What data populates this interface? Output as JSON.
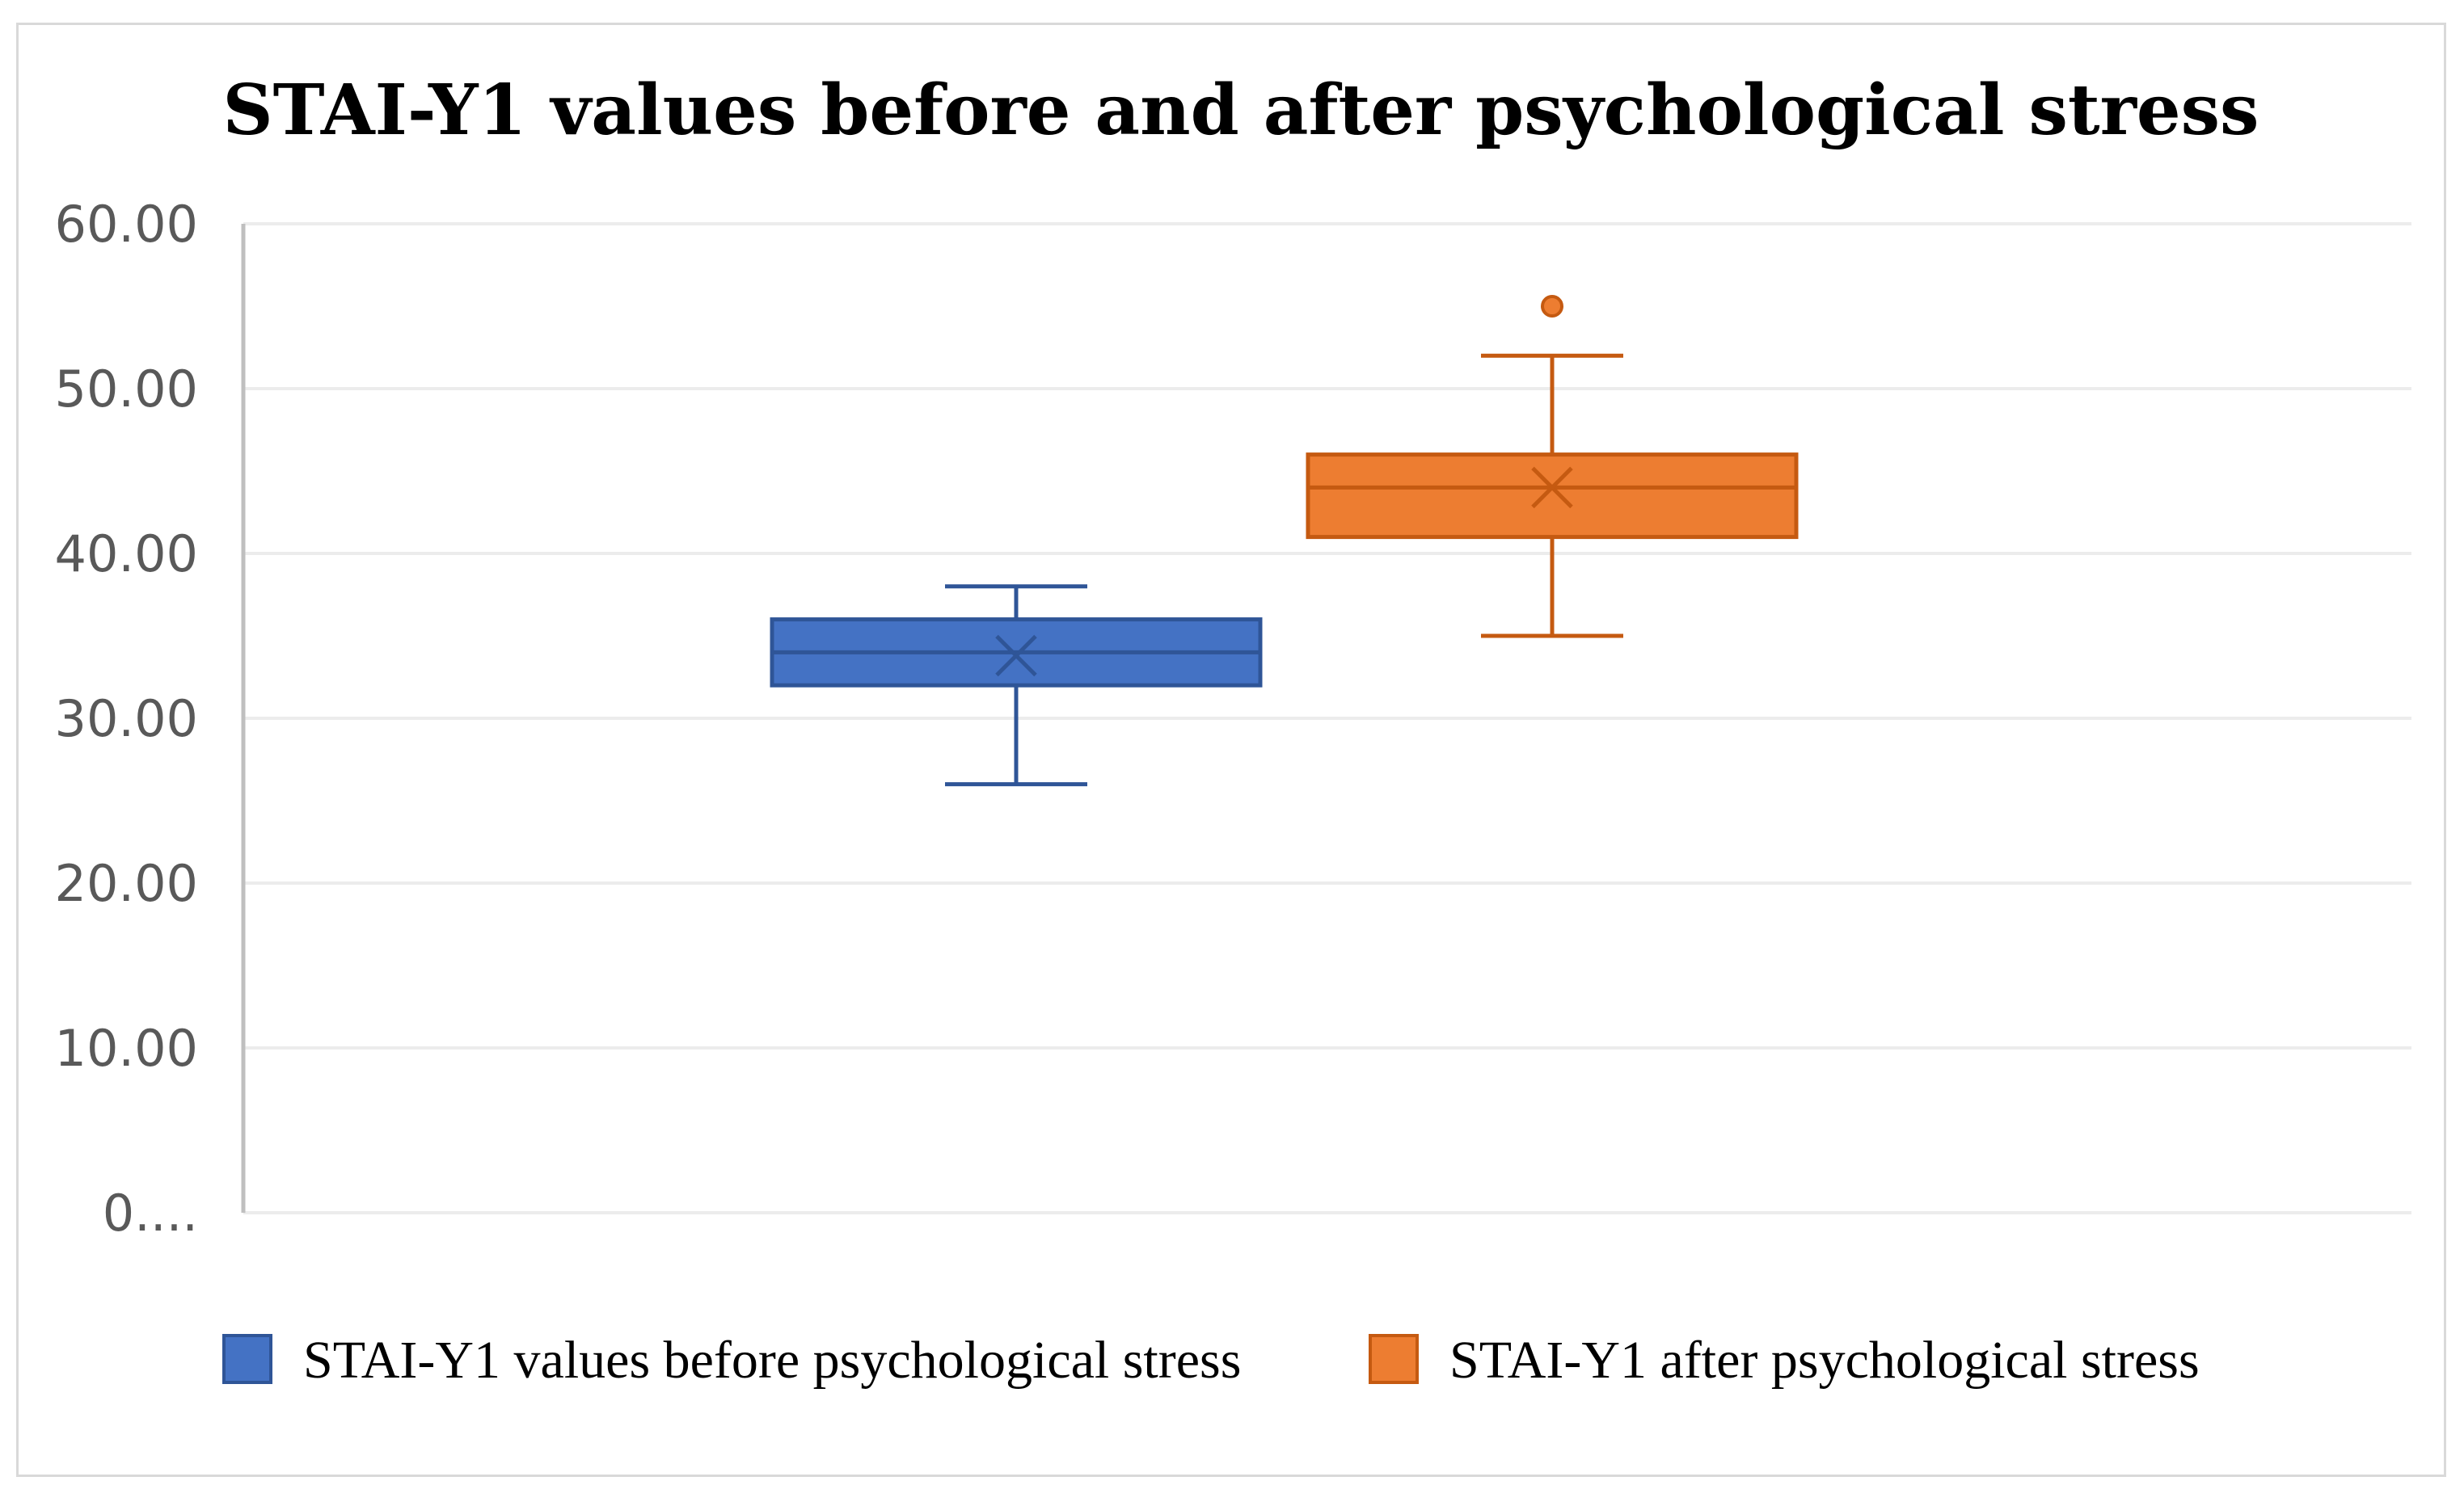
{
  "chart_data": {
    "type": "boxplot",
    "title": "STAI-Y1 values before and after psychological stress",
    "xlabel": "",
    "ylabel": "",
    "ylim": [
      0,
      60
    ],
    "y_ticks": [
      0,
      10,
      20,
      30,
      40,
      50,
      60
    ],
    "y_tick_labels": [
      "0....",
      "10.00",
      "20.00",
      "30.00",
      "40.00",
      "50.00",
      "60.00"
    ],
    "grid": true,
    "legend_position": "bottom",
    "series": [
      {
        "name": "STAI-Y1 values before psychological stress",
        "color": "#4472c4",
        "stroke": "#2f5597",
        "whisker_low": 26,
        "q1": 32,
        "median": 34,
        "q3": 36,
        "whisker_high": 38,
        "mean": 33.8,
        "outliers": []
      },
      {
        "name": "STAI-Y1 after psychological stress",
        "color": "#ed7d31",
        "stroke": "#c55a11",
        "whisker_low": 35,
        "q1": 41,
        "median": 44,
        "q3": 46,
        "whisker_high": 52,
        "mean": 44,
        "outliers": [
          55
        ]
      }
    ]
  }
}
